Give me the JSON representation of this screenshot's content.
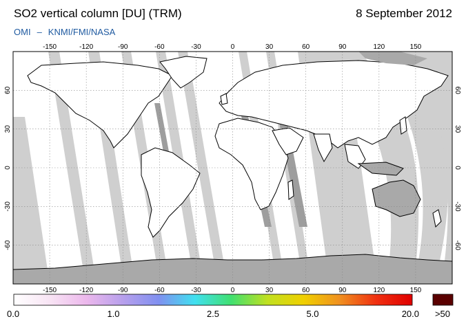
{
  "header": {
    "title": "SO2 vertical column [DU] (TRM)",
    "date": "8 September 2012",
    "credit_left": "OMI",
    "credit_sep": "–",
    "credit_right": "KNMI/FMI/NASA"
  },
  "map": {
    "projection": "equirectangular",
    "lon_range": [
      -180,
      180
    ],
    "lat_range": [
      -90,
      90
    ],
    "lon_ticks": [
      "-150",
      "-120",
      "-90",
      "-60",
      "-30",
      "0",
      "30",
      "60",
      "90",
      "120",
      "150"
    ],
    "lat_ticks": [
      "60",
      "30",
      "0",
      "-30",
      "-60"
    ],
    "no_data_color": "#a9a9a9",
    "swath_gap_color": "#cfcfcf",
    "background_color": "#ffffff"
  },
  "colorbar": {
    "labels": [
      "0.0",
      "1.0",
      "2.5",
      "5.0",
      "20.0"
    ],
    "overflow_label": ">50",
    "stops": [
      "#ffffff",
      "#f8e4f4",
      "#ecb8ec",
      "#b8a0ec",
      "#8090f0",
      "#40e0f0",
      "#40e070",
      "#c0e020",
      "#f0d000",
      "#f09020",
      "#f03010",
      "#e00000"
    ],
    "overflow_color": "#5a0000"
  }
}
